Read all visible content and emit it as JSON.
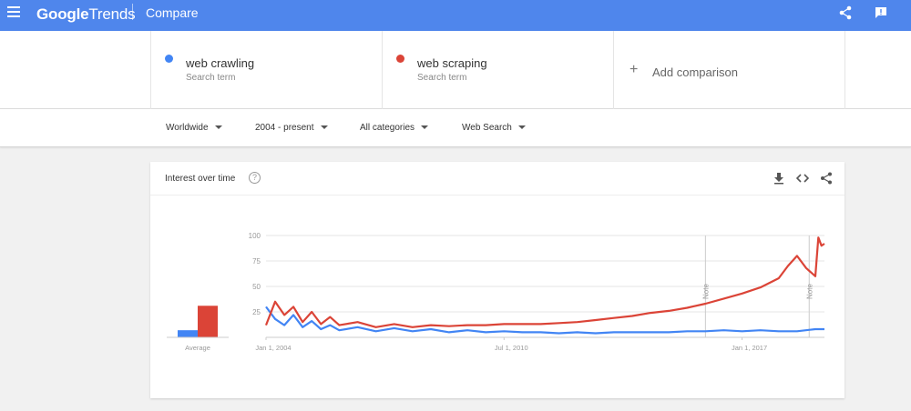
{
  "app": {
    "logo_google": "Google",
    "logo_trends": "Trends",
    "page_title": "Compare"
  },
  "terms": [
    {
      "name": "web crawling",
      "sub": "Search term",
      "color": "#4285f4"
    },
    {
      "name": "web scraping",
      "sub": "Search term",
      "color": "#db4437"
    }
  ],
  "add_comparison": {
    "label": "Add comparison"
  },
  "filters": {
    "region": "Worldwide",
    "time": "2004 - present",
    "category": "All categories",
    "property": "Web Search"
  },
  "card": {
    "title": "Interest over time",
    "help_symbol": "?"
  },
  "chart_data": {
    "type": "line",
    "title": "Interest over time",
    "x_start": "2004-01",
    "x_end": "2019-04",
    "x_tick_labels": [
      "Jan 1, 2004",
      "Jul 1, 2010",
      "Jan 1, 2017"
    ],
    "y_ticks": [
      25,
      50,
      75,
      100
    ],
    "ylim": [
      0,
      100
    ],
    "grid": true,
    "notes": [
      {
        "date": "2016-01",
        "label": "Note"
      },
      {
        "date": "2018-11",
        "label": "Note"
      }
    ],
    "average_label": "Average",
    "averages": {
      "web crawling": 7,
      "web scraping": 31
    },
    "series": [
      {
        "name": "web crawling",
        "color": "#4285f4",
        "points": [
          [
            "2004-01",
            30
          ],
          [
            "2004-04",
            18
          ],
          [
            "2004-07",
            12
          ],
          [
            "2004-10",
            22
          ],
          [
            "2005-01",
            10
          ],
          [
            "2005-04",
            16
          ],
          [
            "2005-07",
            8
          ],
          [
            "2005-10",
            12
          ],
          [
            "2006-01",
            7
          ],
          [
            "2006-07",
            10
          ],
          [
            "2007-01",
            6
          ],
          [
            "2007-07",
            9
          ],
          [
            "2008-01",
            6
          ],
          [
            "2008-07",
            8
          ],
          [
            "2009-01",
            5
          ],
          [
            "2009-07",
            7
          ],
          [
            "2010-01",
            5
          ],
          [
            "2010-07",
            6
          ],
          [
            "2011-01",
            5
          ],
          [
            "2011-07",
            5
          ],
          [
            "2012-01",
            4
          ],
          [
            "2012-07",
            5
          ],
          [
            "2013-01",
            4
          ],
          [
            "2013-07",
            5
          ],
          [
            "2014-01",
            5
          ],
          [
            "2014-07",
            5
          ],
          [
            "2015-01",
            5
          ],
          [
            "2015-07",
            6
          ],
          [
            "2016-01",
            6
          ],
          [
            "2016-07",
            7
          ],
          [
            "2017-01",
            6
          ],
          [
            "2017-07",
            7
          ],
          [
            "2018-01",
            6
          ],
          [
            "2018-07",
            6
          ],
          [
            "2019-01",
            8
          ],
          [
            "2019-04",
            8
          ]
        ]
      },
      {
        "name": "web scraping",
        "color": "#db4437",
        "points": [
          [
            "2004-01",
            12
          ],
          [
            "2004-04",
            35
          ],
          [
            "2004-07",
            22
          ],
          [
            "2004-10",
            30
          ],
          [
            "2005-01",
            15
          ],
          [
            "2005-04",
            25
          ],
          [
            "2005-07",
            13
          ],
          [
            "2005-10",
            20
          ],
          [
            "2006-01",
            12
          ],
          [
            "2006-07",
            15
          ],
          [
            "2007-01",
            10
          ],
          [
            "2007-07",
            13
          ],
          [
            "2008-01",
            10
          ],
          [
            "2008-07",
            12
          ],
          [
            "2009-01",
            11
          ],
          [
            "2009-07",
            12
          ],
          [
            "2010-01",
            12
          ],
          [
            "2010-07",
            13
          ],
          [
            "2011-01",
            13
          ],
          [
            "2011-07",
            13
          ],
          [
            "2012-01",
            14
          ],
          [
            "2012-07",
            15
          ],
          [
            "2013-01",
            17
          ],
          [
            "2013-07",
            19
          ],
          [
            "2014-01",
            21
          ],
          [
            "2014-07",
            24
          ],
          [
            "2015-01",
            26
          ],
          [
            "2015-07",
            29
          ],
          [
            "2016-01",
            33
          ],
          [
            "2016-07",
            38
          ],
          [
            "2017-01",
            43
          ],
          [
            "2017-07",
            49
          ],
          [
            "2018-01",
            58
          ],
          [
            "2018-04",
            70
          ],
          [
            "2018-07",
            80
          ],
          [
            "2018-10",
            68
          ],
          [
            "2019-01",
            60
          ],
          [
            "2019-02",
            98
          ],
          [
            "2019-03",
            90
          ],
          [
            "2019-04",
            92
          ]
        ]
      }
    ]
  }
}
